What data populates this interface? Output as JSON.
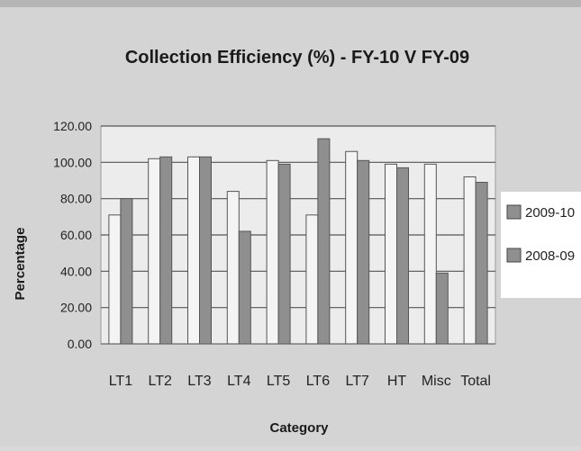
{
  "chart_data": {
    "type": "bar",
    "title": "Collection Efficiency (%) - FY-10 V  FY-09",
    "xlabel": "Category",
    "ylabel": "Percentage",
    "categories": [
      "LT1",
      "LT2",
      "LT3",
      "LT4",
      "LT5",
      "LT6",
      "LT7",
      "HT",
      "Misc",
      "Total"
    ],
    "series": [
      {
        "name": "2009-10",
        "color": "#f4f4f4",
        "values": [
          71,
          102,
          103,
          84,
          101,
          71,
          106,
          99,
          99,
          92
        ]
      },
      {
        "name": "2008-09",
        "color": "#8f8f8f",
        "values": [
          80,
          103,
          103,
          62,
          99,
          113,
          101,
          97,
          39,
          89
        ]
      }
    ],
    "ylim": [
      0,
      120
    ],
    "yticks": [
      "0.00",
      "20.00",
      "40.00",
      "60.00",
      "80.00",
      "100.00",
      "120.00"
    ],
    "grid": true,
    "legend_position": "right",
    "plot_background": "#ececec",
    "page_background": "#d4d4d4"
  }
}
